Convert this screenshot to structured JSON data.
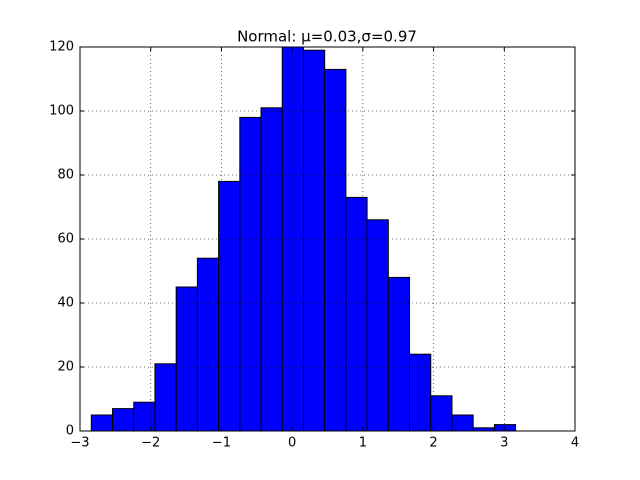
{
  "chart_data": {
    "type": "histogram",
    "title": "Normal: μ=0.03,σ=0.97",
    "bins": [
      -2.84,
      -2.54,
      -2.24,
      -1.94,
      -1.64,
      -1.34,
      -1.04,
      -0.74,
      -0.44,
      -0.14,
      0.16,
      0.46,
      0.76,
      1.06,
      1.36,
      1.66,
      1.96,
      2.26,
      2.56,
      2.86,
      3.16
    ],
    "values": [
      5,
      7,
      9,
      21,
      45,
      54,
      78,
      98,
      101,
      120,
      119,
      113,
      73,
      66,
      48,
      24,
      11,
      5,
      1,
      2
    ],
    "color": "#0000ff",
    "xlim": [
      -3,
      4
    ],
    "xticks": [
      {
        "value": -3,
        "label": "−3"
      },
      {
        "value": -2,
        "label": "−2"
      },
      {
        "value": -1,
        "label": "−1"
      },
      0,
      1,
      2,
      3,
      4
    ],
    "ylim": [
      0,
      120
    ],
    "yticks": [
      0,
      20,
      40,
      60,
      80,
      100,
      120
    ],
    "grid": true
  }
}
